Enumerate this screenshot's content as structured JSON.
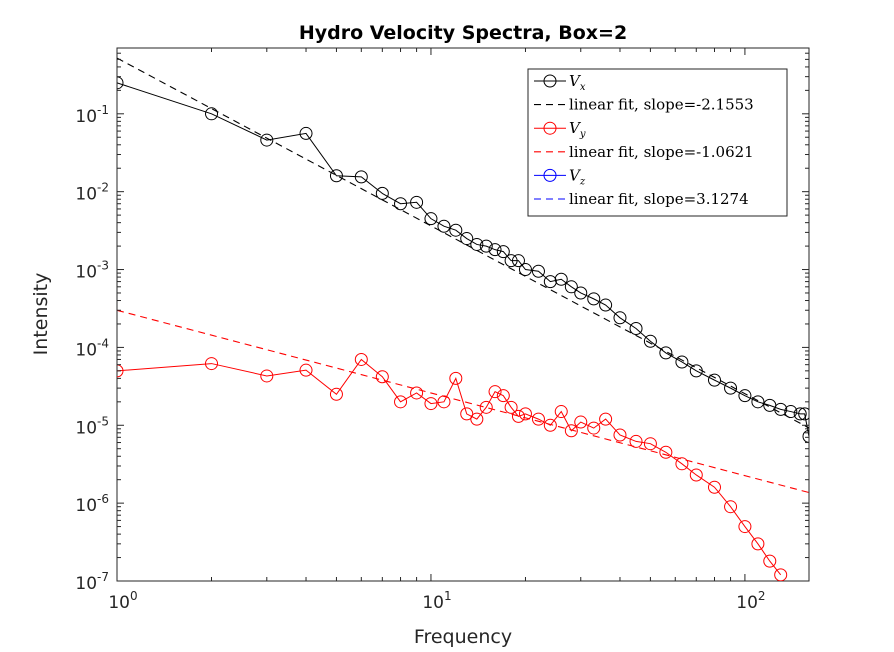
{
  "chart_data": {
    "type": "line",
    "title": "Hydro Velocity Spectra, Box=2",
    "xlabel": "Frequency",
    "ylabel": "Intensity",
    "xscale": "log",
    "yscale": "log",
    "xlim": [
      1,
      160
    ],
    "ylim": [
      1e-07,
      0.7
    ],
    "x_ticks": [
      {
        "base": "10",
        "exp": "0",
        "value": 1
      },
      {
        "base": "10",
        "exp": "1",
        "value": 10
      },
      {
        "base": "10",
        "exp": "2",
        "value": 100
      }
    ],
    "y_ticks": [
      {
        "base": "10",
        "exp": "-7",
        "value": 1e-07
      },
      {
        "base": "10",
        "exp": "-6",
        "value": 1e-06
      },
      {
        "base": "10",
        "exp": "-5",
        "value": 1e-05
      },
      {
        "base": "10",
        "exp": "-4",
        "value": 0.0001
      },
      {
        "base": "10",
        "exp": "-3",
        "value": 0.001
      },
      {
        "base": "10",
        "exp": "-2",
        "value": 0.01
      },
      {
        "base": "10",
        "exp": "-1",
        "value": 0.1
      }
    ],
    "grid": false,
    "legend_position": "top-right",
    "series": [
      {
        "name": "V",
        "sub": "x",
        "color": "#000000",
        "marker": "circle",
        "x": [
          1,
          2,
          3,
          4,
          5,
          6,
          7,
          8,
          9,
          10,
          11,
          12,
          13,
          14,
          15,
          16,
          17,
          18,
          19,
          20,
          22,
          24,
          26,
          28,
          30,
          33,
          36,
          40,
          45,
          50,
          56,
          63,
          70,
          80,
          90,
          100,
          110,
          120,
          130,
          140,
          150,
          155,
          160
        ],
        "y": [
          0.25,
          0.1,
          0.046,
          0.056,
          0.016,
          0.0155,
          0.0095,
          0.007,
          0.0073,
          0.0045,
          0.0036,
          0.0032,
          0.0025,
          0.0021,
          0.002,
          0.0018,
          0.0017,
          0.0013,
          0.0013,
          0.001,
          0.00095,
          0.0007,
          0.00075,
          0.0006,
          0.0005,
          0.00042,
          0.00035,
          0.00024,
          0.000175,
          0.00012,
          8.5e-05,
          6.5e-05,
          5e-05,
          3.8e-05,
          3e-05,
          2.4e-05,
          2e-05,
          1.8e-05,
          1.6e-05,
          1.5e-05,
          1.4e-05,
          1.4e-05,
          7.2e-06
        ]
      },
      {
        "name": "V",
        "sub": "y",
        "color": "#ff0000",
        "marker": "circle",
        "x": [
          1,
          2,
          3,
          4,
          5,
          6,
          7,
          8,
          9,
          10,
          11,
          12,
          13,
          14,
          15,
          16,
          17,
          18,
          19,
          20,
          22,
          24,
          26,
          28,
          30,
          33,
          36,
          40,
          45,
          50,
          56,
          63,
          70,
          80,
          90,
          100,
          110,
          120,
          130
        ],
        "y": [
          5e-05,
          6.2e-05,
          4.3e-05,
          5.1e-05,
          2.5e-05,
          7e-05,
          4.2e-05,
          2e-05,
          2.6e-05,
          1.9e-05,
          2e-05,
          4e-05,
          1.4e-05,
          1.2e-05,
          1.7e-05,
          2.7e-05,
          2.4e-05,
          1.7e-05,
          1.3e-05,
          1.4e-05,
          1.2e-05,
          1e-05,
          1.5e-05,
          8.5e-06,
          1.1e-05,
          9.2e-06,
          1.2e-05,
          7.5e-06,
          6.2e-06,
          5.8e-06,
          4.5e-06,
          3.2e-06,
          2.3e-06,
          1.6e-06,
          9e-07,
          5e-07,
          3e-07,
          1.8e-07,
          1.2e-07
        ]
      },
      {
        "name": "V",
        "sub": "z",
        "color": "#0000ff",
        "marker": "circle",
        "x": [],
        "y": []
      }
    ],
    "fits": [
      {
        "name": "linear fit, slope=-2.1553",
        "color": "#000000",
        "slope": -2.1553,
        "x": [
          1,
          160
        ],
        "y0": 0.52
      },
      {
        "name": "linear fit, slope=-1.0621",
        "color": "#ff0000",
        "slope": -1.0621,
        "x": [
          1,
          160
        ],
        "y0": 0.0003
      },
      {
        "name": "linear fit, slope=3.1274",
        "color": "#0000ff",
        "slope": 3.1274,
        "x": [],
        "y0": null
      }
    ]
  }
}
